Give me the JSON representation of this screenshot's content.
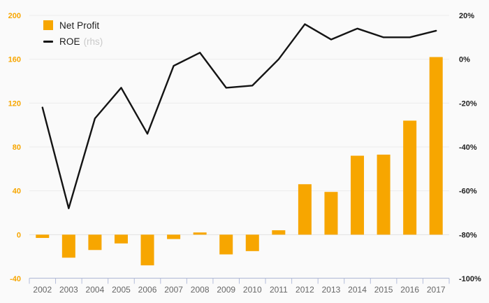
{
  "page": {
    "background": "#FAFAFA"
  },
  "colors": {
    "bar": "#F7A600",
    "line": "#141414",
    "left_axis_labels": "#F7A600",
    "right_axis_labels": "#1F1F1F",
    "year_labels": "#666666",
    "axis_line": "#B3BCD9",
    "gridline": "#ECECEC",
    "zero_gridline": "#E2E2E2",
    "legend_text": "#1B1B1B",
    "legend_muted": "#C9C9C9",
    "background": "#FAFAFA"
  },
  "legend": {
    "net_profit_label": "Net Profit",
    "roe_label": "ROE",
    "roe_suffix": "(rhs)"
  },
  "chart_data": {
    "type": "bar",
    "title": "",
    "xlabel": "",
    "ylabel": "",
    "categories": [
      "2002",
      "2003",
      "2004",
      "2005",
      "2006",
      "2007",
      "2008",
      "2009",
      "2010",
      "2011",
      "2012",
      "2013",
      "2014",
      "2015",
      "2016",
      "2017"
    ],
    "series": [
      {
        "name": "Net Profit",
        "type": "bar",
        "axis": "left",
        "color": "#F7A600",
        "values": [
          -3,
          -21,
          -14,
          -8,
          -28,
          -4,
          2,
          -18,
          -15,
          4,
          46,
          39,
          72,
          73,
          104,
          162
        ]
      },
      {
        "name": "ROE (rhs)",
        "type": "line",
        "axis": "right",
        "color": "#141414",
        "values": [
          -22,
          -68,
          -27,
          -13,
          -34,
          -3,
          3,
          -13,
          -12,
          0,
          16,
          9,
          14,
          10,
          10,
          13
        ]
      }
    ],
    "left_axis": {
      "ticks": [
        200,
        160,
        120,
        80,
        40,
        0,
        -40
      ],
      "range": [
        -40,
        200
      ]
    },
    "right_axis": {
      "tick_labels": [
        "20%",
        "0%",
        "-20%",
        "-40%",
        "-60%",
        "-80%",
        "-100%"
      ],
      "tick_values": [
        20,
        0,
        -20,
        -40,
        -60,
        -80,
        -100
      ],
      "range": [
        -100,
        20
      ]
    },
    "grid": true,
    "legend_position": "top-left"
  }
}
